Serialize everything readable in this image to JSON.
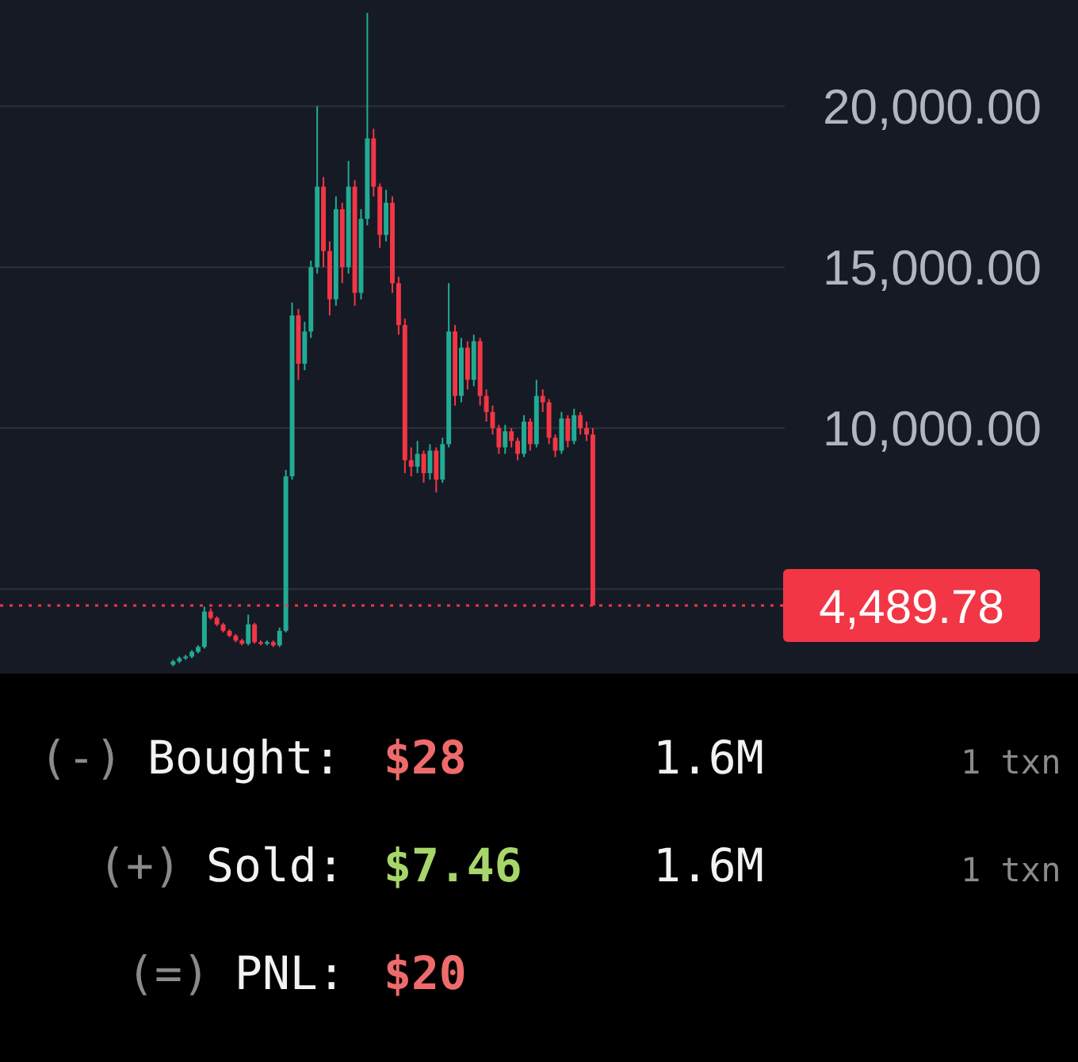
{
  "chart_data": [
    {
      "type": "candlestick",
      "categories": [
        null,
        null,
        null,
        null,
        null,
        null,
        null,
        null,
        null,
        null,
        null,
        null,
        null,
        null,
        null,
        null,
        null,
        null,
        null,
        null,
        null,
        null,
        null,
        null,
        null,
        null,
        null,
        null,
        null,
        null,
        null,
        null,
        null,
        null,
        null,
        null,
        null,
        null,
        null,
        null,
        null,
        null,
        null,
        null,
        null,
        null,
        null,
        null,
        null,
        null,
        null,
        null,
        null,
        null,
        null,
        null,
        null,
        null,
        null,
        null,
        null,
        null,
        null,
        null,
        null,
        null,
        null,
        null,
        null,
        null,
        null,
        null,
        null,
        null,
        null,
        null,
        null,
        null,
        null,
        null,
        null,
        null,
        null,
        null,
        null,
        null,
        null,
        null,
        null,
        null,
        null,
        null,
        null,
        null,
        null,
        null,
        null,
        null,
        null,
        null,
        null,
        null,
        null,
        null,
        null,
        null,
        null,
        null,
        null,
        null,
        null,
        null,
        null,
        null,
        null,
        null,
        null,
        null,
        null,
        null,
        null,
        null,
        null,
        null,
        null
      ],
      "ohlc": [
        null,
        null,
        null,
        null,
        null,
        null,
        null,
        null,
        null,
        null,
        null,
        null,
        null,
        null,
        null,
        null,
        null,
        null,
        null,
        null,
        null,
        null,
        null,
        null,
        null,
        null,
        null,
        [
          2650,
          2800,
          2600,
          2750
        ],
        [
          2750,
          2900,
          2700,
          2850
        ],
        [
          2850,
          2950,
          2800,
          2900
        ],
        [
          2900,
          3100,
          2850,
          3050
        ],
        [
          3050,
          3250,
          3000,
          3200
        ],
        [
          3200,
          4450,
          3150,
          4300
        ],
        [
          4300,
          4400,
          4050,
          4100
        ],
        [
          4100,
          4150,
          3850,
          3900
        ],
        [
          3900,
          3950,
          3650,
          3700
        ],
        [
          3700,
          3750,
          3500,
          3550
        ],
        [
          3550,
          3600,
          3350,
          3400
        ],
        [
          3400,
          3450,
          3250,
          3300
        ],
        [
          3300,
          4200,
          3250,
          3900
        ],
        [
          3900,
          3950,
          3300,
          3350
        ],
        [
          3350,
          3400,
          3250,
          3300
        ],
        [
          3300,
          3400,
          3250,
          3350
        ],
        [
          3350,
          3400,
          3200,
          3250
        ],
        [
          3250,
          3800,
          3200,
          3700
        ],
        [
          3700,
          8700,
          3650,
          8500
        ],
        [
          8500,
          13900,
          8400,
          13500
        ],
        [
          13500,
          13700,
          11500,
          12000
        ],
        [
          12000,
          13300,
          11800,
          13000
        ],
        [
          13000,
          15200,
          12800,
          15000
        ],
        [
          15000,
          20000,
          14800,
          17500
        ],
        [
          17500,
          17800,
          15000,
          15500
        ],
        [
          15500,
          15800,
          13500,
          14000
        ],
        [
          14000,
          17200,
          13800,
          16800
        ],
        [
          16800,
          17000,
          14500,
          15000
        ],
        [
          15000,
          18300,
          14800,
          17500
        ],
        [
          17500,
          17700,
          13800,
          14200
        ],
        [
          14200,
          16800,
          14000,
          16500
        ],
        [
          16500,
          22900,
          16300,
          19000
        ],
        [
          19000,
          19300,
          17200,
          17500
        ],
        [
          17500,
          17600,
          15600,
          16000
        ],
        [
          16000,
          17400,
          15800,
          17000
        ],
        [
          17000,
          17200,
          14200,
          14500
        ],
        [
          14500,
          14700,
          12900,
          13200
        ],
        [
          13200,
          13400,
          8600,
          9000
        ],
        [
          9000,
          9400,
          8500,
          8800
        ],
        [
          8800,
          9600,
          8600,
          9200
        ],
        [
          9200,
          9300,
          8300,
          8600
        ],
        [
          8600,
          9500,
          8400,
          9300
        ],
        [
          9300,
          9400,
          8000,
          8400
        ],
        [
          8400,
          9700,
          8300,
          9500
        ],
        [
          9500,
          14500,
          9400,
          13000
        ],
        [
          13000,
          13200,
          10700,
          11000
        ],
        [
          11000,
          12800,
          10800,
          12500
        ],
        [
          12500,
          12700,
          11200,
          11500
        ],
        [
          11500,
          12900,
          11300,
          12700
        ],
        [
          12700,
          12800,
          10700,
          11000
        ],
        [
          11000,
          11200,
          10200,
          10500
        ],
        [
          10500,
          10700,
          9800,
          10000
        ],
        [
          10000,
          10100,
          9200,
          9400
        ],
        [
          9400,
          10100,
          9200,
          9900
        ],
        [
          9900,
          10000,
          9400,
          9600
        ],
        [
          9600,
          9700,
          9000,
          9200
        ],
        [
          9200,
          10400,
          9100,
          10200
        ],
        [
          10200,
          10300,
          9300,
          9500
        ],
        [
          9500,
          11500,
          9400,
          11000
        ],
        [
          11000,
          11200,
          10500,
          10800
        ],
        [
          10800,
          10900,
          9500,
          9700
        ],
        [
          9700,
          9800,
          9100,
          9300
        ],
        [
          9300,
          10500,
          9200,
          10300
        ],
        [
          10300,
          10400,
          9400,
          9600
        ],
        [
          9600,
          10600,
          9500,
          10400
        ],
        [
          10400,
          10500,
          9800,
          10000
        ],
        [
          10000,
          10200,
          9600,
          9800
        ],
        [
          9800,
          10000,
          4489.78,
          4489.78
        ],
        null,
        null,
        null,
        null,
        null,
        null,
        null,
        null,
        null,
        null,
        null,
        null,
        null,
        null,
        null,
        null,
        null,
        null,
        null,
        null,
        null,
        null,
        null,
        null,
        null,
        null,
        null,
        null,
        null,
        null
      ],
      "ylim": [
        2370,
        23300
      ],
      "yticks": [
        {
          "value": 5000,
          "label": null
        },
        {
          "value": 10000,
          "label": "10,000.00"
        },
        {
          "value": 15000,
          "label": "15,000.00"
        },
        {
          "value": 20000,
          "label": "20,000.00"
        }
      ],
      "grid": "y",
      "tick_labels": "y",
      "ref_lines": [
        {
          "axis": "y",
          "value": 4489.78,
          "label": "4,489.78",
          "color": "#f23645",
          "line_style": "dotted"
        }
      ]
    },
    {
      "type": "other",
      "annotations": [
        "(-)",
        "Bought:",
        "$28",
        "1.6M",
        "1 txn",
        "(+)",
        "Sold:",
        "$7.46",
        "1.6M",
        "1 txn",
        "(=)",
        "PNL:",
        "$20"
      ]
    }
  ]
}
